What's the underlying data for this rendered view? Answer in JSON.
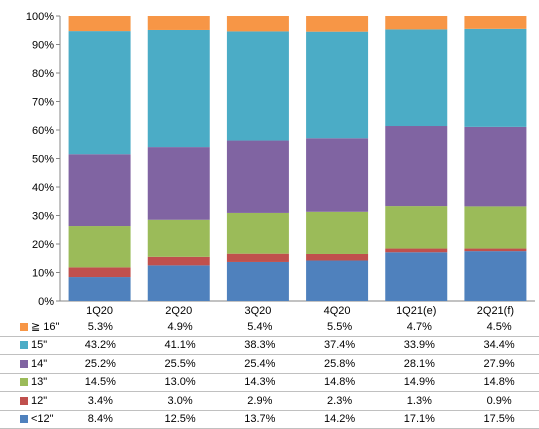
{
  "chart_data": {
    "type": "bar",
    "stacked": true,
    "categories": [
      "1Q20",
      "2Q20",
      "3Q20",
      "4Q20",
      "1Q21(e)",
      "2Q21(f)"
    ],
    "series": [
      {
        "name": "<12\"",
        "color": "#4f81bd",
        "values": [
          8.4,
          12.5,
          13.7,
          14.2,
          17.1,
          17.5
        ],
        "labels": [
          "8.4%",
          "12.5%",
          "13.7%",
          "14.2%",
          "17.1%",
          "17.5%"
        ]
      },
      {
        "name": "12\"",
        "color": "#c0504d",
        "values": [
          3.4,
          3.0,
          2.9,
          2.3,
          1.3,
          0.9
        ],
        "labels": [
          "3.4%",
          "3.0%",
          "2.9%",
          "2.3%",
          "1.3%",
          "0.9%"
        ]
      },
      {
        "name": "13\"",
        "color": "#9bbb59",
        "values": [
          14.5,
          13.0,
          14.3,
          14.8,
          14.9,
          14.8
        ],
        "labels": [
          "14.5%",
          "13.0%",
          "14.3%",
          "14.8%",
          "14.9%",
          "14.8%"
        ]
      },
      {
        "name": "14\"",
        "color": "#8064a2",
        "values": [
          25.2,
          25.5,
          25.4,
          25.8,
          28.1,
          27.9
        ],
        "labels": [
          "25.2%",
          "25.5%",
          "25.4%",
          "25.8%",
          "28.1%",
          "27.9%"
        ]
      },
      {
        "name": "15\"",
        "color": "#4bacc6",
        "values": [
          43.2,
          41.1,
          38.3,
          37.4,
          33.9,
          34.4
        ],
        "labels": [
          "43.2%",
          "41.1%",
          "38.3%",
          "37.4%",
          "33.9%",
          "34.4%"
        ]
      },
      {
        "name": "≧ 16\"",
        "color": "#f79646",
        "values": [
          5.3,
          4.9,
          5.4,
          5.5,
          4.7,
          4.5
        ],
        "labels": [
          "5.3%",
          "4.9%",
          "5.4%",
          "5.5%",
          "4.7%",
          "4.5%"
        ]
      }
    ],
    "ylim": [
      0,
      100
    ],
    "yticks": [
      "0%",
      "10%",
      "20%",
      "30%",
      "40%",
      "50%",
      "60%",
      "70%",
      "80%",
      "90%",
      "100%"
    ],
    "grid": false,
    "legend": "data-table-below"
  }
}
